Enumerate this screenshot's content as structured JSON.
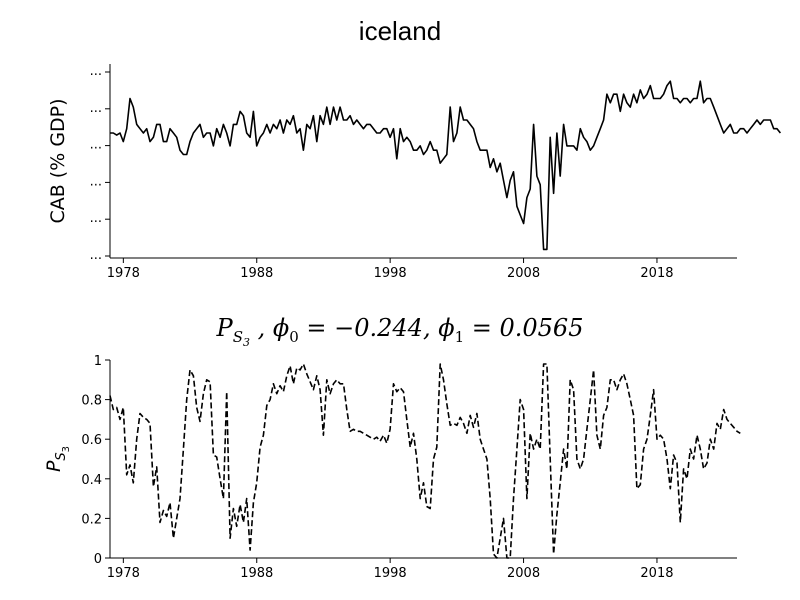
{
  "chart_data": [
    {
      "type": "line",
      "title": "iceland",
      "ylabel": "CAB (% GDP)",
      "xlabel": "",
      "xlim": [
        1977,
        2024
      ],
      "ylim": [
        -30,
        15
      ],
      "x_ticks": [
        "1978",
        "1988",
        "1998",
        "2008",
        "2018"
      ],
      "y_tick_labels": [
        "...",
        "...",
        "...",
        "...",
        "...",
        "..."
      ],
      "line_style": "solid",
      "series": [
        {
          "x_start": 1977.0,
          "x_step": 0.25,
          "values": [
            -1,
            -1,
            -1.5,
            -1,
            -3,
            0,
            7,
            5,
            1,
            0,
            -1,
            0,
            -3,
            -2,
            1,
            1,
            -3,
            -3,
            0,
            -1,
            -2,
            -5,
            -6,
            -6,
            -3,
            -1,
            0,
            1,
            -2,
            -1,
            -1,
            -4,
            0,
            -2,
            1,
            -1,
            -4,
            1,
            1,
            4,
            3,
            -1,
            -2,
            4,
            -4,
            -2,
            -1,
            1,
            -1,
            1,
            0,
            2,
            -1,
            2,
            1,
            3,
            -1,
            0,
            -5,
            1,
            0,
            3,
            -3,
            3,
            1,
            5,
            1,
            5,
            2,
            5,
            2,
            2,
            3,
            1,
            2,
            1,
            0,
            1,
            1,
            0,
            -1,
            -1,
            0,
            0,
            -2,
            0,
            -7,
            0,
            -3,
            -2,
            -3,
            -5,
            -5,
            -4,
            -6,
            -5,
            -3,
            -5,
            -5,
            -8,
            -7,
            -6,
            5,
            -3,
            -1,
            5,
            2,
            2,
            1,
            0,
            -3,
            -5,
            -5,
            -5,
            -9,
            -7,
            -10,
            -8,
            -12,
            -16,
            -12,
            -10,
            -18,
            -20,
            -22,
            -16,
            -14,
            1,
            -11,
            -13,
            -28,
            -28,
            -2,
            -15,
            -1,
            -11,
            1,
            -4,
            -4,
            -4,
            -5,
            0,
            -2,
            -3,
            -5,
            -4,
            -2,
            0,
            2,
            8,
            6,
            8,
            8,
            4,
            8,
            6,
            5,
            8,
            6,
            9,
            7,
            8,
            10,
            7,
            7,
            7,
            8,
            10,
            11,
            7,
            7,
            6,
            7,
            7,
            6,
            7,
            7,
            11,
            6,
            7,
            7,
            5,
            3,
            1,
            -1,
            0,
            1,
            -1,
            -1,
            0,
            0,
            -1,
            0,
            1,
            2,
            1,
            2,
            2,
            2,
            0,
            0,
            -1
          ]
        }
      ]
    },
    {
      "type": "line",
      "title": "P_{S_3}, φ_0 = −0.244, φ_1 = 0.0565",
      "ylabel": "P_{S_3}",
      "xlabel": "",
      "xlim": [
        1977,
        2024
      ],
      "ylim": [
        0,
        1
      ],
      "x_ticks": [
        "1978",
        "1988",
        "1998",
        "2008",
        "2018"
      ],
      "y_ticks": [
        "0",
        "0.2",
        "0.4",
        "0.6",
        "0.8",
        "1"
      ],
      "line_style": "dashed",
      "series": [
        {
          "x_start": 1977.0,
          "x_step": 0.25,
          "values": [
            0.82,
            0.75,
            0.76,
            0.7,
            0.76,
            0.42,
            0.47,
            0.38,
            0.6,
            0.73,
            0.71,
            0.7,
            0.68,
            0.36,
            0.46,
            0.18,
            0.24,
            0.21,
            0.28,
            0.1,
            0.2,
            0.3,
            0.55,
            0.8,
            0.95,
            0.92,
            0.76,
            0.69,
            0.83,
            0.9,
            0.89,
            0.52,
            0.51,
            0.4,
            0.3,
            0.84,
            0.1,
            0.25,
            0.16,
            0.27,
            0.18,
            0.3,
            0.04,
            0.28,
            0.38,
            0.56,
            0.62,
            0.77,
            0.8,
            0.88,
            0.83,
            0.87,
            0.84,
            0.92,
            0.97,
            0.88,
            0.96,
            0.95,
            0.98,
            0.93,
            0.89,
            0.85,
            0.92,
            0.85,
            0.62,
            0.9,
            0.83,
            0.88,
            0.9,
            0.88,
            0.88,
            0.75,
            0.64,
            0.65,
            0.64,
            0.64,
            0.63,
            0.62,
            0.61,
            0.6,
            0.61,
            0.59,
            0.62,
            0.58,
            0.65,
            0.88,
            0.84,
            0.86,
            0.84,
            0.7,
            0.56,
            0.63,
            0.5,
            0.3,
            0.38,
            0.26,
            0.25,
            0.5,
            0.56,
            0.98,
            0.9,
            0.78,
            0.67,
            0.68,
            0.67,
            0.71,
            0.68,
            0.63,
            0.72,
            0.66,
            0.73,
            0.6,
            0.55,
            0.5,
            0.3,
            0.02,
            0.0,
            0.1,
            0.2,
            0.0,
            0.0,
            0.3,
            0.55,
            0.8,
            0.75,
            0.3,
            0.63,
            0.55,
            0.6,
            0.55,
            0.98,
            0.98,
            0.5,
            0.02,
            0.22,
            0.38,
            0.55,
            0.45,
            0.9,
            0.85,
            0.5,
            0.45,
            0.5,
            0.65,
            0.8,
            0.95,
            0.62,
            0.55,
            0.72,
            0.76,
            0.9,
            0.9,
            0.85,
            0.9,
            0.93,
            0.88,
            0.8,
            0.72,
            0.35,
            0.37,
            0.55,
            0.6,
            0.72,
            0.85,
            0.6,
            0.62,
            0.6,
            0.5,
            0.35,
            0.52,
            0.48,
            0.18,
            0.45,
            0.4,
            0.55,
            0.5,
            0.62,
            0.55,
            0.45,
            0.48,
            0.6,
            0.55,
            0.68,
            0.65,
            0.75,
            0.7,
            0.68,
            0.66,
            0.64,
            0.63
          ]
        }
      ]
    }
  ]
}
